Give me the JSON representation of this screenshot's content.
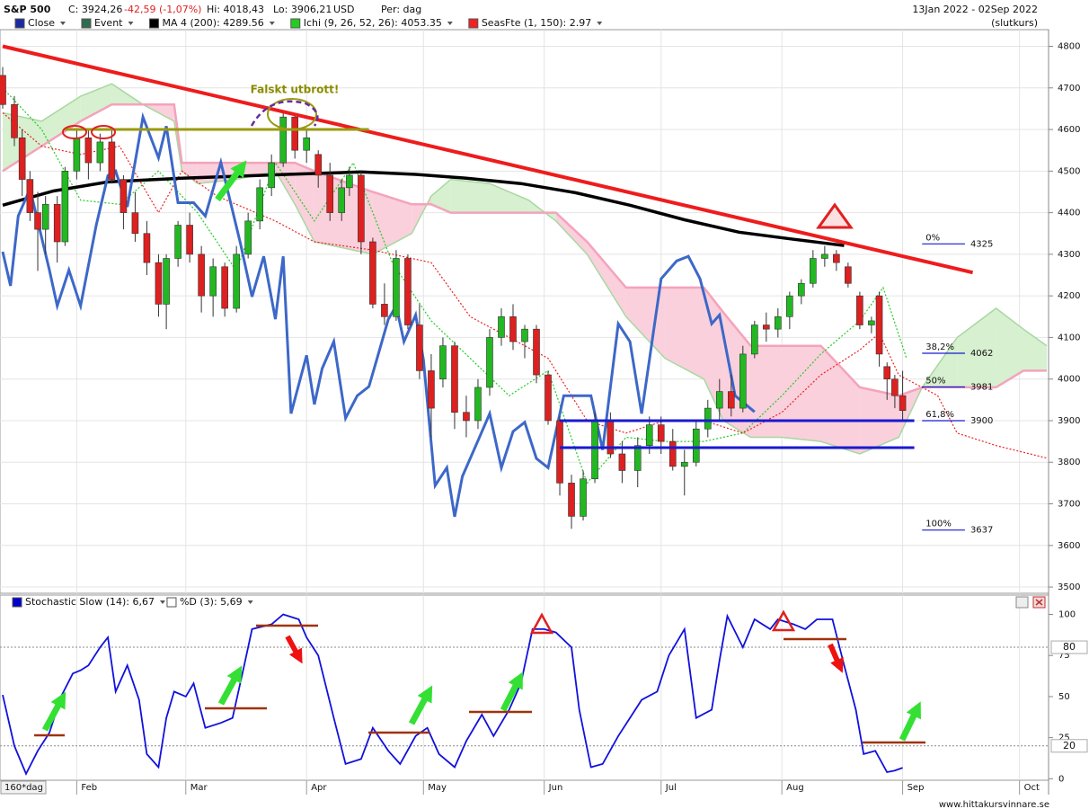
{
  "header": {
    "title": "S&P 500",
    "close": "C: 3924,26",
    "change": "-42,59 (-1,07%)",
    "high": "Hi: 4018,43",
    "low": "Lo: 3906,21",
    "currency": "USD",
    "period": "Per: dag",
    "range": "13Jan 2022 - 02Sep 2022",
    "price_type": "(slutkurs)",
    "source": "www.hittakursvinnare.se"
  },
  "chart_data": [
    {
      "type": "candlestick",
      "legend": [
        {
          "name": "Close",
          "color": "#1a2aa0"
        },
        {
          "name": "Event",
          "color": "#2e6b4f"
        },
        {
          "name": "MA 4 (200): 4289.56",
          "color": "#000000"
        },
        {
          "name": "Ichi (9, 26, 52, 26): 4053.35",
          "color": "#22cc22"
        },
        {
          "name": "SeasFte (1, 150): 2.97",
          "color": "#ee2222"
        }
      ],
      "xlim": [
        0,
        268
      ],
      "ylim": [
        3485,
        4840
      ],
      "yticks": [
        3500,
        3600,
        3700,
        3800,
        3900,
        4000,
        4100,
        4200,
        4300,
        4400,
        4500,
        4600,
        4700,
        4800
      ],
      "grid": true,
      "candles": {
        "up_color": "#22b822",
        "down_color": "#dd2020",
        "x": [
          0,
          3,
          5,
          7,
          9,
          11,
          14,
          16,
          19,
          22,
          25,
          28,
          31,
          34,
          37,
          40,
          42,
          45,
          48,
          51,
          54,
          57,
          60,
          63,
          66,
          69,
          72,
          75,
          78,
          81,
          84,
          87,
          89,
          92,
          95,
          98,
          101,
          104,
          107,
          110,
          113,
          116,
          119,
          122,
          125,
          128,
          131,
          134,
          137,
          140,
          143,
          146,
          149,
          152,
          156,
          159,
          163,
          166,
          169,
          172,
          175,
          178,
          181,
          184,
          187,
          190,
          193,
          196,
          199,
          202,
          205,
          208,
          211,
          214,
          217,
          220,
          223,
          225,
          227,
          229,
          231
        ],
        "open": [
          4730,
          4660,
          4580,
          4480,
          4400,
          4360,
          4420,
          4330,
          4500,
          4580,
          4520,
          4570,
          4480,
          4400,
          4350,
          4280,
          4180,
          4290,
          4370,
          4300,
          4200,
          4270,
          4170,
          4300,
          4380,
          4460,
          4520,
          4630,
          4550,
          4540,
          4490,
          4400,
          4460,
          4490,
          4330,
          4180,
          4150,
          4290,
          4130,
          4020,
          4000,
          4080,
          3920,
          3900,
          3980,
          4100,
          4150,
          4090,
          4120,
          4010,
          3900,
          3750,
          3670,
          3760,
          3900,
          3820,
          3780,
          3840,
          3890,
          3850,
          3790,
          3800,
          3880,
          3930,
          3970,
          3930,
          4060,
          4130,
          4120,
          4150,
          4200,
          4230,
          4290,
          4300,
          4270,
          4200,
          4130,
          4200,
          4030,
          4000,
          3960
        ],
        "high": [
          4750,
          4680,
          4600,
          4500,
          4450,
          4440,
          4440,
          4510,
          4600,
          4600,
          4590,
          4600,
          4490,
          4450,
          4380,
          4300,
          4300,
          4380,
          4400,
          4320,
          4290,
          4280,
          4320,
          4400,
          4480,
          4540,
          4640,
          4640,
          4600,
          4550,
          4520,
          4480,
          4510,
          4500,
          4340,
          4230,
          4310,
          4300,
          4180,
          4060,
          4100,
          4090,
          3960,
          4000,
          4120,
          4170,
          4180,
          4130,
          4130,
          4020,
          3910,
          3770,
          3780,
          3920,
          3920,
          3850,
          3860,
          3910,
          3910,
          3880,
          3830,
          3900,
          3950,
          4000,
          4010,
          4080,
          4140,
          4160,
          4170,
          4210,
          4240,
          4310,
          4320,
          4310,
          4280,
          4210,
          4150,
          4210,
          4040,
          4010,
          4020
        ],
        "low": [
          4650,
          4560,
          4440,
          4380,
          4260,
          4300,
          4280,
          4320,
          4480,
          4480,
          4500,
          4470,
          4360,
          4330,
          4250,
          4150,
          4120,
          4270,
          4280,
          4160,
          4150,
          4150,
          4160,
          4290,
          4360,
          4440,
          4510,
          4530,
          4520,
          4460,
          4380,
          4380,
          4440,
          4300,
          4170,
          4130,
          4140,
          4120,
          4000,
          3860,
          3980,
          3880,
          3860,
          3880,
          3960,
          4080,
          4070,
          4050,
          3990,
          3890,
          3720,
          3640,
          3660,
          3750,
          3810,
          3750,
          3740,
          3820,
          3820,
          3780,
          3720,
          3790,
          3860,
          3900,
          3910,
          3920,
          4050,
          4090,
          4100,
          4120,
          4180,
          4220,
          4270,
          4260,
          4220,
          4120,
          4110,
          4030,
          3950,
          3930,
          3900
        ],
        "close": [
          4660,
          4580,
          4480,
          4400,
          4360,
          4420,
          4330,
          4500,
          4580,
          4520,
          4570,
          4480,
          4400,
          4350,
          4280,
          4180,
          4290,
          4370,
          4300,
          4200,
          4270,
          4170,
          4300,
          4380,
          4460,
          4520,
          4630,
          4550,
          4580,
          4490,
          4400,
          4460,
          4490,
          4330,
          4180,
          4150,
          4290,
          4130,
          4020,
          3930,
          4080,
          3920,
          3900,
          3980,
          4100,
          4150,
          4090,
          4120,
          4010,
          3900,
          3750,
          3670,
          3760,
          3900,
          3820,
          3780,
          3840,
          3890,
          3850,
          3790,
          3800,
          3880,
          3930,
          3970,
          3930,
          4060,
          4130,
          4120,
          4150,
          4200,
          4230,
          4290,
          4300,
          4280,
          4230,
          4130,
          4140,
          4060,
          4000,
          3960,
          3924.26
        ]
      },
      "close_line": {
        "color": "#3d68c8",
        "x": [
          0,
          2,
          4,
          7,
          12,
          14,
          17,
          20,
          24,
          27,
          29,
          32,
          36,
          40,
          42,
          45,
          49,
          52,
          56,
          61,
          64,
          67,
          70,
          72,
          74,
          78,
          80,
          82,
          85,
          88,
          91,
          94,
          96,
          99,
          101,
          103,
          106,
          108,
          111,
          114,
          116,
          118,
          122,
          125,
          128,
          131,
          134,
          137,
          140,
          144,
          147,
          151,
          154,
          158,
          161,
          164,
          169,
          173,
          176,
          179,
          182,
          184,
          188,
          193
        ],
        "values": [
          4306,
          4224,
          4392,
          4457,
          4262,
          4176,
          4262,
          4176,
          4370,
          4489,
          4500,
          4414,
          4630,
          4532,
          4608,
          4424,
          4424,
          4392,
          4521,
          4327,
          4198,
          4295,
          4144,
          4295,
          3917,
          4057,
          3939,
          4025,
          4090,
          3906,
          3960,
          3982,
          4046,
          4144,
          4176,
          4090,
          4154,
          4046,
          3744,
          3787,
          3669,
          3766,
          3852,
          3917,
          3787,
          3874,
          3896,
          3809,
          3787,
          3960,
          3960,
          3960,
          3830,
          4133,
          4090,
          3917,
          4241,
          4284,
          4295,
          4241,
          4133,
          4154,
          3960,
          3921
        ]
      },
      "ma": {
        "color": "#000000",
        "x": [
          0,
          13,
          27,
          46,
          59,
          73,
          92,
          106,
          119,
          133,
          147,
          161,
          175,
          189,
          203,
          216
        ],
        "values": [
          4418,
          4452,
          4474,
          4483,
          4487,
          4492,
          4498,
          4492,
          4483,
          4470,
          4448,
          4418,
          4383,
          4353,
          4336,
          4321
        ]
      },
      "ichimoku": {
        "up_color": "#d6f0d0",
        "down_color": "#f9d0dc",
        "span_a_color": "#a8d8a0",
        "span_b_color": "#f4a3bb",
        "tenkan_color": "#22cc22",
        "x": [
          0,
          10,
          20,
          28,
          36,
          44,
          46,
          50,
          60,
          70,
          75,
          80,
          95,
          105,
          110,
          115,
          125,
          135,
          142,
          150,
          160,
          170,
          180,
          185,
          192,
          200,
          210,
          220,
          230,
          236,
          245,
          255,
          262,
          268
        ],
        "span_a": [
          4640,
          4620,
          4680,
          4710,
          4660,
          4620,
          4500,
          4470,
          4480,
          4500,
          4420,
          4330,
          4300,
          4350,
          4440,
          4480,
          4470,
          4430,
          4380,
          4300,
          4150,
          4050,
          4000,
          3900,
          3860,
          3860,
          3850,
          3820,
          3860,
          3980,
          4100,
          4170,
          4120,
          4080
        ],
        "span_b": [
          4500,
          4560,
          4620,
          4660,
          4660,
          4660,
          4520,
          4520,
          4520,
          4520,
          4520,
          4500,
          4450,
          4420,
          4420,
          4400,
          4400,
          4400,
          4400,
          4330,
          4220,
          4220,
          4220,
          4160,
          4080,
          4080,
          4080,
          3980,
          3960,
          3980,
          3980,
          3980,
          4020,
          4020
        ],
        "tenkan_x": [
          0,
          10,
          20,
          30,
          40,
          50,
          60,
          70,
          80,
          90,
          100,
          110,
          120,
          130,
          140,
          150,
          160,
          170,
          180,
          190,
          200,
          210,
          220,
          226,
          232
        ],
        "tenkan": [
          4700,
          4600,
          4430,
          4420,
          4500,
          4400,
          4260,
          4520,
          4380,
          4520,
          4280,
          4140,
          4050,
          3960,
          4020,
          3750,
          3860,
          3850,
          3850,
          3870,
          3960,
          4060,
          4140,
          4220,
          4050
        ]
      },
      "seasonal": {
        "color": "#ee2222",
        "x": [
          0,
          10,
          20,
          30,
          40,
          46,
          55,
          70,
          80,
          95,
          110,
          120,
          130,
          140,
          150,
          160,
          170,
          180,
          190,
          200,
          210,
          220,
          225,
          230,
          240,
          245,
          255,
          268
        ],
        "values": [
          4640,
          4560,
          4540,
          4560,
          4400,
          4500,
          4440,
          4380,
          4330,
          4310,
          4280,
          4150,
          4100,
          4050,
          3900,
          3870,
          3900,
          3900,
          3870,
          3920,
          4010,
          4070,
          4110,
          4010,
          3960,
          3870,
          3840,
          3810
        ]
      },
      "trendline": {
        "color": "#ee1c1c",
        "x": [
          0,
          249
        ],
        "values": [
          4800,
          4256
        ]
      },
      "hlines": [
        {
          "color": "#9a9a10",
          "value": 4600,
          "x": [
            16,
            94
          ]
        },
        {
          "color": "#1a1ad0",
          "value": 3900,
          "x": [
            143,
            234
          ]
        },
        {
          "color": "#1a1ad0",
          "value": 3835,
          "x": [
            143,
            234
          ]
        }
      ],
      "fib": {
        "color": "#1a1ad0",
        "x": [
          236,
          247
        ],
        "labels": [
          "0%",
          "38,2%",
          "50%",
          "61,8%",
          "100%"
        ],
        "values": [
          4325,
          4062,
          3981,
          3900,
          3637
        ]
      },
      "annotation": {
        "text": "Falskt utbrott!",
        "color": "#8b8b00"
      }
    },
    {
      "type": "line",
      "legend": [
        {
          "name": "Stochastic Slow (14): 6,67",
          "color": "#0000cc"
        },
        {
          "name": "%D (3): 5,69",
          "color": "#ffffff"
        }
      ],
      "period_label": "160*dag",
      "xlim": [
        0,
        268
      ],
      "ylim": [
        -2,
        103
      ],
      "yticks": [
        0,
        25,
        50,
        75,
        100
      ],
      "levels": [
        80,
        20
      ],
      "xticks": [
        {
          "value": 19,
          "label": "Feb"
        },
        {
          "value": 47,
          "label": "Mar"
        },
        {
          "value": 78,
          "label": "Apr"
        },
        {
          "value": 108,
          "label": "May"
        },
        {
          "value": 139,
          "label": "Jun"
        },
        {
          "value": 169,
          "label": "Jul"
        },
        {
          "value": 200,
          "label": "Aug"
        },
        {
          "value": 231,
          "label": "Sep"
        },
        {
          "value": 261,
          "label": "Oct"
        }
      ],
      "series": [
        {
          "color": "#1111dd",
          "x": [
            0,
            3,
            6,
            9,
            12,
            15,
            18,
            20,
            22,
            25,
            27,
            29,
            32,
            35,
            37,
            40,
            42,
            44,
            47,
            49,
            52,
            56,
            59,
            62,
            64,
            69,
            72,
            76,
            78,
            81,
            85,
            88,
            92,
            95,
            99,
            102,
            106,
            109,
            112,
            116,
            119,
            123,
            126,
            130,
            133,
            136,
            139,
            142,
            146,
            148,
            151,
            154,
            158,
            161,
            164,
            168,
            171,
            175,
            178,
            182,
            184,
            186,
            190,
            193,
            197,
            199,
            203,
            206,
            209,
            213,
            216,
            219,
            221,
            224,
            227,
            229,
            231
          ],
          "values": [
            51,
            20,
            3,
            17,
            28,
            50,
            64,
            66,
            69,
            80,
            86,
            53,
            69,
            48,
            15,
            7,
            37,
            53,
            50,
            58,
            31,
            34,
            37,
            69,
            91,
            94,
            100,
            97,
            86,
            75,
            37,
            9,
            12,
            31,
            17,
            9,
            26,
            31,
            15,
            7,
            23,
            39,
            26,
            42,
            58,
            91,
            91,
            89,
            80,
            42,
            7,
            9,
            26,
            37,
            48,
            53,
            75,
            91,
            37,
            42,
            72,
            99,
            80,
            97,
            91,
            97,
            94,
            91,
            97,
            97,
            69,
            42,
            15,
            17,
            4,
            5,
            6.67
          ]
        }
      ]
    }
  ]
}
